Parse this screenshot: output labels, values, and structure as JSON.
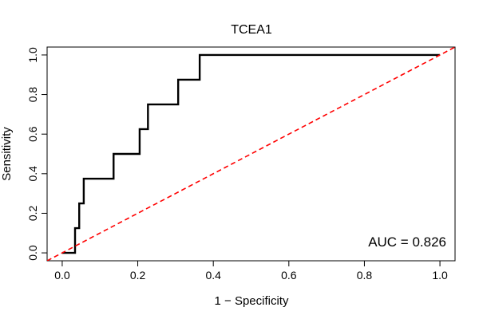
{
  "chart_data": {
    "type": "line",
    "title": "TCEA1",
    "xlabel": "1 − Specificity",
    "ylabel": "Sensitivity",
    "xlim": [
      -0.04,
      1.04
    ],
    "ylim": [
      -0.04,
      1.04
    ],
    "x_ticks": [
      0.0,
      0.2,
      0.4,
      0.6,
      0.8,
      1.0
    ],
    "y_ticks": [
      0.0,
      0.2,
      0.4,
      0.6,
      0.8,
      1.0
    ],
    "x_tick_labels": [
      "0.0",
      "0.2",
      "0.4",
      "0.6",
      "0.8",
      "1.0"
    ],
    "y_tick_labels": [
      "0.0",
      "0.2",
      "0.4",
      "0.6",
      "0.8",
      "1.0"
    ],
    "grid": false,
    "legend": "none",
    "series": [
      {
        "color": "#000000",
        "style": "solid",
        "x": [
          0.0,
          0.034,
          0.034,
          0.045,
          0.045,
          0.057,
          0.057,
          0.068,
          0.068,
          0.136,
          0.136,
          0.205,
          0.205,
          0.227,
          0.227,
          0.307,
          0.307,
          0.364,
          0.364,
          1.0
        ],
        "y": [
          0.0,
          0.0,
          0.125,
          0.125,
          0.25,
          0.25,
          0.375,
          0.375,
          0.375,
          0.375,
          0.5,
          0.5,
          0.625,
          0.625,
          0.75,
          0.75,
          0.875,
          0.875,
          1.0,
          1.0
        ]
      },
      {
        "color": "#ff0000",
        "style": "dashed",
        "x": [
          -0.04,
          1.04
        ],
        "y": [
          -0.04,
          1.04
        ]
      }
    ],
    "annotations": [
      {
        "text": "AUC = 0.826",
        "position": "bottom-right"
      }
    ]
  }
}
